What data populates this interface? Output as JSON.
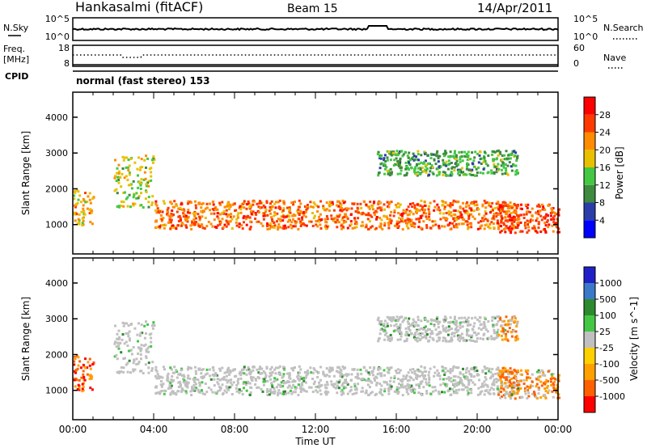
{
  "header": {
    "station": "Hankasalmi (fitACF)",
    "beam": "Beam 15",
    "date": "14/Apr/2011"
  },
  "noise_panel": {
    "left_label": "N.Sky",
    "right_label": "N.Search",
    "left_ticks": [
      "10^5",
      "10^0"
    ],
    "right_ticks": [
      "10^5",
      "10^0"
    ]
  },
  "freq_panel": {
    "left_label_1": "Freq.",
    "left_label_2": "[MHz]",
    "right_label": "Nave",
    "left_ticks": [
      "18",
      "8"
    ],
    "right_ticks": [
      "60",
      "0"
    ]
  },
  "cpid": {
    "label": "CPID",
    "text": "normal (fast stereo) 153"
  },
  "chart_data": [
    {
      "type": "heatmap",
      "title": "",
      "quantity": "Power",
      "ylabel": "Slant Range [km]",
      "xlabel": "Time UT",
      "xlim": [
        "00:00",
        "24:00"
      ],
      "ylim": [
        180,
        4700
      ],
      "y_ticks": [
        "1000",
        "2000",
        "3000",
        "4000"
      ],
      "colorbar_label": "Power [dB]",
      "colorbar_ticks": [
        "4",
        "8",
        "12",
        "16",
        "20",
        "24",
        "28"
      ],
      "colorbar_range": [
        0,
        32
      ],
      "colors": [
        "#0000ff",
        "#2c3ca8",
        "#3e8a3e",
        "#44c844",
        "#e8c000",
        "#ff8c00",
        "#ff3a00",
        "#ff0000"
      ],
      "scatter_bands": [
        {
          "from": "00:00",
          "to": "01:00",
          "range_km": [
            1000,
            2000
          ],
          "level": 20
        },
        {
          "from": "02:00",
          "to": "04:00",
          "range_km": [
            1500,
            3000
          ],
          "level": 16
        },
        {
          "from": "04:00",
          "to": "22:00",
          "range_km": [
            900,
            1700
          ],
          "level": 24
        },
        {
          "from": "15:00",
          "to": "22:00",
          "range_km": [
            2400,
            3100
          ],
          "level": 12
        },
        {
          "from": "21:00",
          "to": "24:00",
          "range_km": [
            800,
            1600
          ],
          "level": 26
        }
      ]
    },
    {
      "type": "heatmap",
      "title": "",
      "quantity": "Velocity",
      "ylabel": "Slant Range [km]",
      "xlabel": "Time UT",
      "xlim": [
        "00:00",
        "24:00"
      ],
      "ylim": [
        180,
        4700
      ],
      "y_ticks": [
        "1000",
        "2000",
        "3000",
        "4000"
      ],
      "colorbar_label": "Velocity [m s^-1]",
      "colorbar_ticks": [
        "1000",
        "500",
        "100",
        "25",
        "-25",
        "-100",
        "-500",
        "-1000"
      ],
      "colors": [
        "#2020c8",
        "#3c78c8",
        "#2e8a2e",
        "#44c844",
        "#c0c0c0",
        "#ffd000",
        "#ffa000",
        "#ff6000",
        "#ff0000"
      ],
      "x_ticks": [
        "00:00",
        "04:00",
        "08:00",
        "12:00",
        "16:00",
        "20:00",
        "00:00"
      ]
    }
  ]
}
